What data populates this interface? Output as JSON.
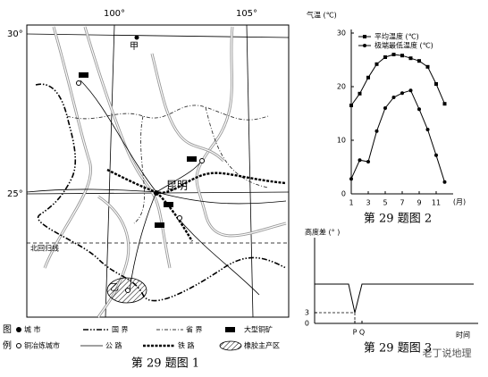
{
  "map": {
    "lon_labels": [
      "100°",
      "105°"
    ],
    "lat_labels": [
      "30°",
      "25°"
    ],
    "places": [
      "甲",
      "昆明",
      "乙"
    ],
    "tropic": "北回归线",
    "legend": {
      "head": [
        "图",
        "例"
      ],
      "items": [
        "城 市",
        "国 界",
        "省 界",
        "大型铜矿",
        "铜冶炼城市",
        "公 路",
        "铁 路",
        "橡胶主产区"
      ]
    },
    "caption": "第 29 题图 1"
  },
  "watermark": "老丁说地理",
  "chart_data": [
    {
      "type": "line",
      "y_label": "气温 (℃)",
      "x_label": "(月)",
      "caption": "第 29 题图 2",
      "x": [
        1,
        2,
        3,
        4,
        5,
        6,
        7,
        8,
        9,
        10,
        11,
        12
      ],
      "xlim": [
        1,
        13
      ],
      "xticks": [
        1,
        3,
        5,
        7,
        9,
        11
      ],
      "ylim": [
        0,
        30
      ],
      "yticks": [
        0,
        10,
        20,
        30
      ],
      "series": [
        {
          "name": "平均温度 (℃)",
          "color": "#000",
          "marker": "square",
          "values": [
            16.5,
            18.7,
            21.7,
            24.2,
            25.5,
            26,
            25.8,
            25.3,
            24.8,
            23.7,
            20.5,
            16.8
          ]
        },
        {
          "name": "极端最低温度 (℃)",
          "color": "#000",
          "marker": "circle",
          "values": [
            2.8,
            6.3,
            6,
            11.7,
            16,
            18,
            18.8,
            19.3,
            15.8,
            12,
            7.2,
            2.2
          ]
        }
      ]
    },
    {
      "type": "line",
      "y_label": "高度差 (° )",
      "x_label": "时间",
      "caption": "第 29 题图 3",
      "x": [
        0,
        38,
        45,
        53,
        178
      ],
      "xlim": [
        0,
        183
      ],
      "xticks": [
        {
          "value": 45,
          "label": "P"
        },
        {
          "value": 53,
          "label": "Q"
        }
      ],
      "ylim": [
        0,
        23
      ],
      "yticks": [
        0,
        3
      ],
      "series": [
        {
          "color": "#000",
          "marker": "none",
          "values": [
            11,
            11,
            3,
            11,
            11
          ]
        }
      ]
    }
  ]
}
